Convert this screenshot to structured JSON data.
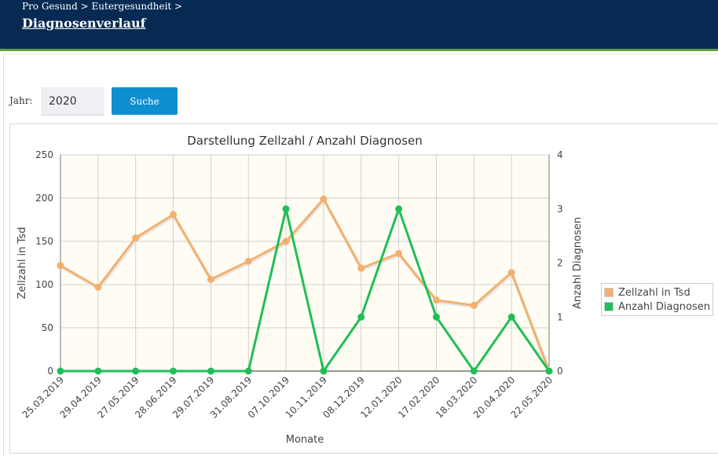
{
  "header": {
    "breadcrumb": "Pro Gesund > Eutergesundheit >",
    "title": "Diagnosenverlauf"
  },
  "filter": {
    "year_label": "Jahr:",
    "year_value": "2020",
    "search_label": "Suche"
  },
  "colors": {
    "header_bg": "#062a52",
    "accent_line": "#5e9e44",
    "button": "#0f8fd0",
    "series_cells": "#f2b06e",
    "series_diagnoses": "#1fbe57",
    "plot_bg": "#fffdf3"
  },
  "chart_data": {
    "type": "line",
    "title": "Darstellung Zellzahl / Anzahl Diagnosen",
    "xlabel": "Monate",
    "ylabel": "Zellzahl in Tsd",
    "y2label": "Anzahl Diagnosen",
    "ylim": [
      0,
      250
    ],
    "y2lim": [
      0,
      4
    ],
    "yticks": [
      "0",
      "50",
      "100",
      "150",
      "200",
      "250"
    ],
    "y2ticks": [
      "0",
      "1",
      "2",
      "3",
      "4"
    ],
    "grid": true,
    "legend_position": "right",
    "categories": [
      "25.03.2019",
      "29.04.2019",
      "27.05.2019",
      "28.06.2019",
      "29.07.2019",
      "31.08.2019",
      "07.10.2019",
      "10.11.2019",
      "08.12.2019",
      "12.01.2020",
      "17.02.2020",
      "18.03.2020",
      "20.04.2020",
      "22.05.2020"
    ],
    "series": [
      {
        "name": "Zellzahl in Tsd",
        "axis": "left",
        "values": [
          122,
          97,
          154,
          181,
          106,
          127,
          150,
          199,
          119,
          136,
          82,
          76,
          114,
          0
        ]
      },
      {
        "name": "Anzahl Diagnosen",
        "axis": "right",
        "values": [
          0,
          0,
          0,
          0,
          0,
          0,
          3,
          0,
          1,
          3,
          1,
          0,
          1,
          0
        ]
      }
    ]
  }
}
